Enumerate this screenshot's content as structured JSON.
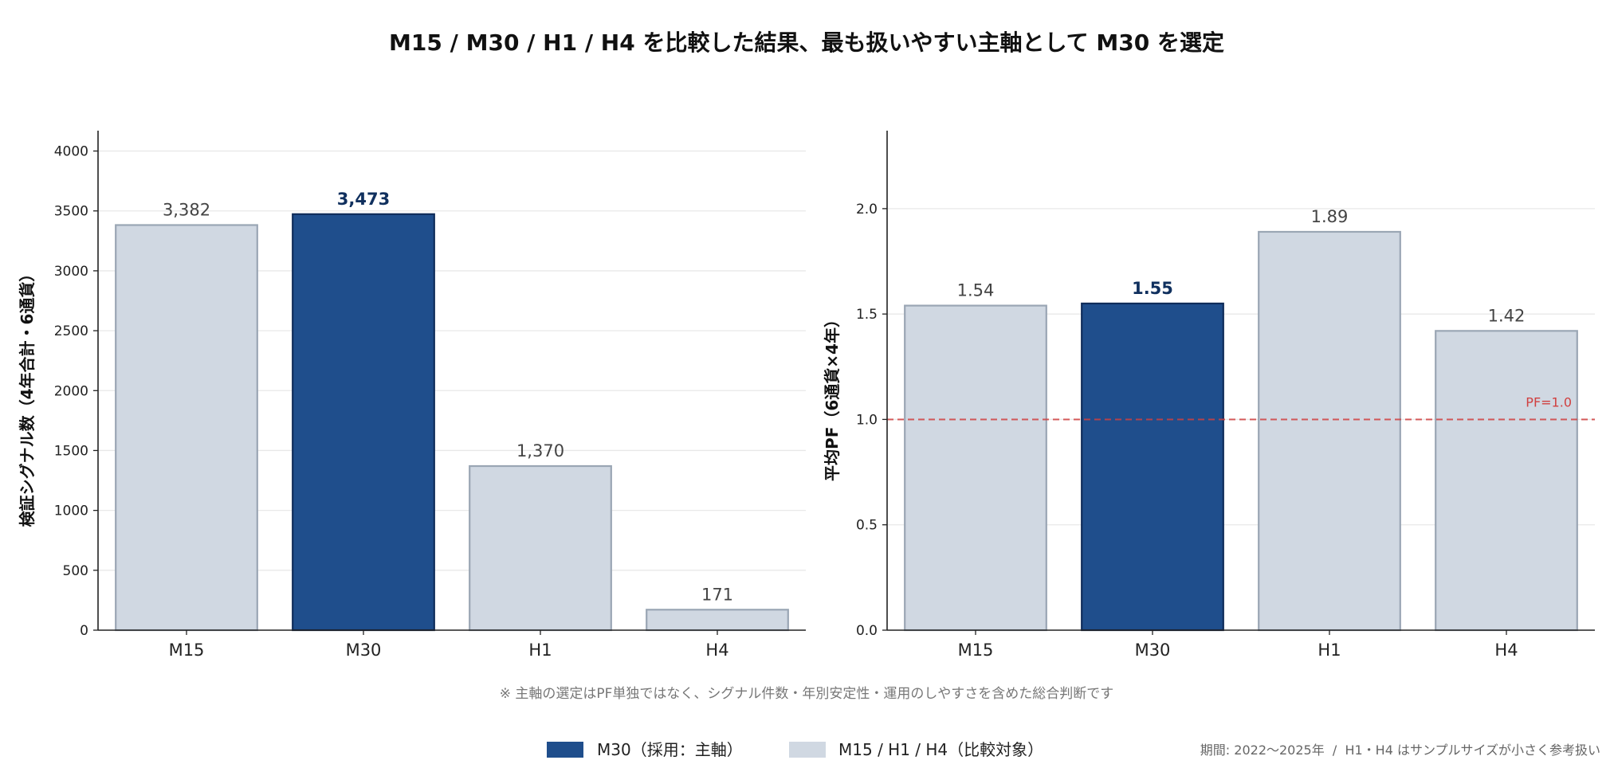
{
  "title": "M15 / M30 / H1 / H4 を比較した結果、最も扱いやすい主軸として M30 を選定",
  "footnote": "※ 主軸の選定はPF単独ではなく、シグナル件数・年別安定性・運用のしやすさを含めた総合判断です",
  "period_note": "期間: 2022〜2025年  /  H1・H4 はサンプルサイズが小さく参考扱い",
  "legend": [
    {
      "label": "M30（採用：主軸）",
      "color": "#1f4e8c"
    },
    {
      "label": "M15 / H1 / H4（比較対象）",
      "color": "#d0d8e2"
    }
  ],
  "colors": {
    "selected": "#1f4e8c",
    "selected_edge": "#0f2c5a",
    "other": "#d0d8e2",
    "other_edge": "#9aa6b4",
    "reference": "#d04040",
    "selected_label": "#10305e",
    "label": "#444444"
  },
  "chart_data": [
    {
      "type": "bar",
      "categories": [
        "M15",
        "M30",
        "H1",
        "H4"
      ],
      "values": [
        3382,
        3473,
        1370,
        171
      ],
      "value_labels": [
        "3,382",
        "3,473",
        "1,370",
        "171"
      ],
      "highlight": "M30",
      "ylabel": "検証シグナル数（4年合計・6通貨）",
      "ylim": [
        0,
        4170
      ],
      "yticks": [
        0,
        500,
        1000,
        1500,
        2000,
        2500,
        3000,
        3500,
        4000
      ],
      "ytick_labels": [
        "0",
        "500",
        "1000",
        "1500",
        "2000",
        "2500",
        "3000",
        "3500",
        "4000"
      ],
      "grid": "horizontal"
    },
    {
      "type": "bar",
      "categories": [
        "M15",
        "M30",
        "H1",
        "H4"
      ],
      "values": [
        1.54,
        1.55,
        1.89,
        1.42
      ],
      "value_labels": [
        "1.54",
        "1.55",
        "1.89",
        "1.42"
      ],
      "highlight": "M30",
      "ylabel": "平均PF（6通貨×4年）",
      "ylim": [
        0,
        2.37
      ],
      "yticks": [
        0,
        0.5,
        1.0,
        1.5,
        2.0
      ],
      "ytick_labels": [
        "0.0",
        "0.5",
        "1.0",
        "1.5",
        "2.0"
      ],
      "grid": "horizontal",
      "reference_line": {
        "y": 1.0,
        "label": "PF=1.0",
        "style": "dashed"
      }
    }
  ]
}
